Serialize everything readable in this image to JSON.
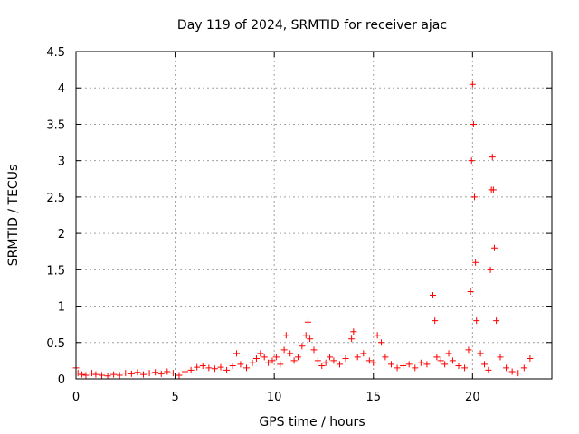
{
  "chart_data": {
    "type": "scatter",
    "title": "Day 119 of 2024, SRMTID for receiver ajac",
    "xlabel": "GPS time / hours",
    "ylabel": "SRMTID / TECUs",
    "xlim": [
      0,
      24
    ],
    "ylim": [
      0,
      4.5
    ],
    "xticks": [
      0,
      5,
      10,
      15,
      20
    ],
    "xtick_labels": [
      "0",
      "5",
      "10",
      "15",
      "20"
    ],
    "yticks": [
      0,
      0.5,
      1,
      1.5,
      2,
      2.5,
      3,
      3.5,
      4,
      4.5
    ],
    "ytick_labels": [
      "0",
      "0.5",
      "1",
      "1.5",
      "2",
      "2.5",
      "3",
      "3.5",
      "4",
      "4.5"
    ],
    "grid": true,
    "marker": "+",
    "color": "#ff0000",
    "series": [
      {
        "name": "SRMTID",
        "points": [
          [
            0.0,
            0.15
          ],
          [
            0.1,
            0.08
          ],
          [
            0.3,
            0.06
          ],
          [
            0.5,
            0.05
          ],
          [
            0.8,
            0.08
          ],
          [
            1.0,
            0.06
          ],
          [
            1.3,
            0.05
          ],
          [
            1.6,
            0.04
          ],
          [
            1.9,
            0.06
          ],
          [
            2.2,
            0.05
          ],
          [
            2.5,
            0.08
          ],
          [
            2.8,
            0.07
          ],
          [
            3.1,
            0.09
          ],
          [
            3.4,
            0.06
          ],
          [
            3.7,
            0.08
          ],
          [
            4.0,
            0.09
          ],
          [
            4.3,
            0.07
          ],
          [
            4.6,
            0.1
          ],
          [
            4.9,
            0.08
          ],
          [
            5.2,
            0.05
          ],
          [
            5.5,
            0.1
          ],
          [
            5.8,
            0.12
          ],
          [
            6.1,
            0.16
          ],
          [
            6.4,
            0.18
          ],
          [
            6.7,
            0.15
          ],
          [
            7.0,
            0.14
          ],
          [
            7.3,
            0.16
          ],
          [
            7.6,
            0.12
          ],
          [
            7.9,
            0.18
          ],
          [
            8.1,
            0.35
          ],
          [
            8.3,
            0.2
          ],
          [
            8.6,
            0.15
          ],
          [
            8.9,
            0.22
          ],
          [
            9.1,
            0.28
          ],
          [
            9.3,
            0.35
          ],
          [
            9.5,
            0.3
          ],
          [
            9.7,
            0.22
          ],
          [
            9.9,
            0.25
          ],
          [
            10.1,
            0.3
          ],
          [
            10.3,
            0.2
          ],
          [
            10.5,
            0.4
          ],
          [
            10.6,
            0.6
          ],
          [
            10.8,
            0.35
          ],
          [
            11.0,
            0.25
          ],
          [
            11.2,
            0.3
          ],
          [
            11.4,
            0.45
          ],
          [
            11.6,
            0.6
          ],
          [
            11.7,
            0.78
          ],
          [
            11.8,
            0.55
          ],
          [
            12.0,
            0.4
          ],
          [
            12.2,
            0.25
          ],
          [
            12.4,
            0.18
          ],
          [
            12.6,
            0.22
          ],
          [
            12.8,
            0.3
          ],
          [
            13.0,
            0.25
          ],
          [
            13.3,
            0.2
          ],
          [
            13.6,
            0.28
          ],
          [
            13.9,
            0.55
          ],
          [
            14.0,
            0.65
          ],
          [
            14.2,
            0.3
          ],
          [
            14.5,
            0.35
          ],
          [
            14.8,
            0.25
          ],
          [
            15.0,
            0.22
          ],
          [
            15.2,
            0.6
          ],
          [
            15.4,
            0.5
          ],
          [
            15.6,
            0.3
          ],
          [
            15.9,
            0.2
          ],
          [
            16.2,
            0.15
          ],
          [
            16.5,
            0.18
          ],
          [
            16.8,
            0.2
          ],
          [
            17.1,
            0.15
          ],
          [
            17.4,
            0.22
          ],
          [
            17.7,
            0.2
          ],
          [
            18.0,
            1.15
          ],
          [
            18.1,
            0.8
          ],
          [
            18.2,
            0.3
          ],
          [
            18.4,
            0.25
          ],
          [
            18.6,
            0.2
          ],
          [
            18.8,
            0.35
          ],
          [
            19.0,
            0.25
          ],
          [
            19.3,
            0.18
          ],
          [
            19.6,
            0.15
          ],
          [
            19.8,
            0.4
          ],
          [
            19.9,
            1.2
          ],
          [
            19.95,
            3.0
          ],
          [
            20.0,
            4.05
          ],
          [
            20.05,
            3.5
          ],
          [
            20.1,
            2.5
          ],
          [
            20.15,
            1.6
          ],
          [
            20.2,
            0.8
          ],
          [
            20.4,
            0.35
          ],
          [
            20.6,
            0.2
          ],
          [
            20.8,
            0.12
          ],
          [
            20.9,
            1.5
          ],
          [
            20.95,
            2.6
          ],
          [
            21.0,
            3.05
          ],
          [
            21.05,
            2.6
          ],
          [
            21.1,
            1.8
          ],
          [
            21.2,
            0.8
          ],
          [
            21.4,
            0.3
          ],
          [
            21.7,
            0.15
          ],
          [
            22.0,
            0.1
          ],
          [
            22.3,
            0.08
          ],
          [
            22.6,
            0.15
          ],
          [
            22.9,
            0.28
          ]
        ]
      }
    ]
  }
}
